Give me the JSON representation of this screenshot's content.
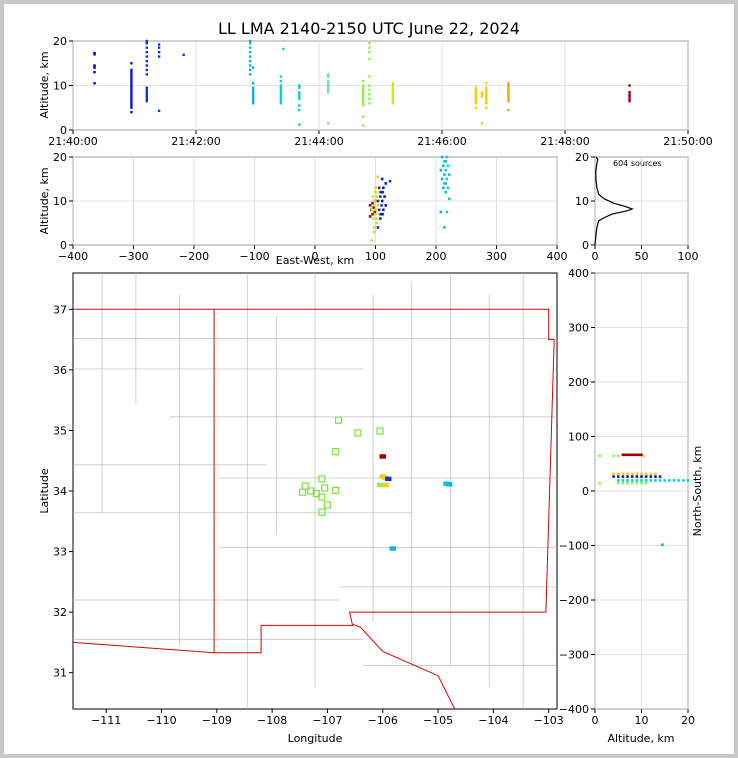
{
  "chart_data": {
    "title": "LL LMA 2140-2150 UTC June 22, 2024",
    "colors": [
      "#0000aa",
      "#0a18cc",
      "#1030e8",
      "#00b4e6",
      "#00d2d2",
      "#60e8a0",
      "#90f050",
      "#c8f000",
      "#ffc800",
      "#ffa000",
      "#a00000"
    ],
    "time_altitude": {
      "type": "scatter",
      "ylabel": "Altitude, km",
      "xlim_minutes": [
        40,
        50
      ],
      "ylim": [
        0,
        20
      ],
      "x_ticks": [
        "21:40:00",
        "21:42:00",
        "21:44:00",
        "21:46:00",
        "21:48:00",
        "21:50:00"
      ],
      "y_ticks": [
        "0",
        "10",
        "20"
      ],
      "columns": [
        {
          "t": 40.35,
          "z": [
            10.5,
            13,
            14,
            14.5,
            17,
            17.3
          ],
          "c": 0
        },
        {
          "t": 40.95,
          "z": [
            4,
            5,
            5.5,
            6,
            6.5,
            7,
            7.5,
            8,
            8.5,
            9,
            9.5,
            10,
            10.5,
            11,
            11.5,
            12,
            12.5,
            13,
            13.5,
            15
          ],
          "c": 1
        },
        {
          "t": 41.2,
          "z": [
            6.5,
            7,
            7.5,
            8,
            8.5,
            9,
            9.5,
            12.5,
            13.5,
            14.5,
            15.5,
            16.5,
            17.5,
            18.5,
            19.5,
            20
          ],
          "c": 2
        },
        {
          "t": 41.4,
          "z": [
            4.3,
            16.5,
            17.5,
            18.5,
            19.2
          ],
          "c": 2
        },
        {
          "t": 41.8,
          "z": [
            16.9
          ],
          "c": 2
        },
        {
          "t": 42.88,
          "z": [
            12.5,
            13.5,
            14.5,
            15.5,
            16.5,
            17.5,
            18.5,
            19.5,
            20
          ],
          "c": 3
        },
        {
          "t": 42.93,
          "z": [
            6,
            6.5,
            7,
            7.5,
            8,
            8.5,
            9,
            9.5,
            10.5,
            14
          ],
          "c": 3
        },
        {
          "t": 43.38,
          "z": [
            6,
            6.5,
            7,
            7.5,
            8,
            8.5,
            9,
            9.5,
            10,
            11,
            12
          ],
          "c": 4
        },
        {
          "t": 43.42,
          "z": [
            18.2
          ],
          "c": 4
        },
        {
          "t": 43.68,
          "z": [
            1.2,
            4.5,
            5.5,
            7,
            7.5,
            8,
            8.5,
            9.5,
            10
          ],
          "c": 4
        },
        {
          "t": 44.15,
          "z": [
            1.5,
            8.5,
            9,
            9.5,
            10,
            10.5,
            11,
            12,
            12.5
          ],
          "c": 5
        },
        {
          "t": 44.72,
          "z": [
            1,
            3,
            5.5,
            6,
            6.5,
            7,
            7.5,
            8,
            8.5,
            9,
            9.5,
            10,
            11
          ],
          "c": 6
        },
        {
          "t": 44.82,
          "z": [
            6,
            7,
            8,
            9,
            10,
            12,
            16,
            17.5,
            18.5,
            19.5
          ],
          "c": 6
        },
        {
          "t": 45.2,
          "z": [
            6,
            6.5,
            7,
            7.5,
            8,
            8.5,
            9,
            9.5,
            10,
            10.5
          ],
          "c": 7
        },
        {
          "t": 46.55,
          "z": [
            5,
            6,
            6.5,
            7,
            7.5,
            8,
            8.5,
            9,
            9.5
          ],
          "c": 8
        },
        {
          "t": 46.65,
          "z": [
            1.5,
            7.5,
            8,
            8.5
          ],
          "c": 8
        },
        {
          "t": 46.72,
          "z": [
            5,
            6,
            6.5,
            7,
            7.5,
            8,
            8.5,
            9,
            9.5,
            10.5
          ],
          "c": 8
        },
        {
          "t": 47.08,
          "z": [
            4.5,
            6.5,
            7,
            7.5,
            8,
            8.5,
            9,
            9.5,
            10,
            10.5
          ],
          "c": 9
        },
        {
          "t": 49.05,
          "z": [
            6.5,
            7,
            7.5,
            8,
            8.5,
            10
          ],
          "c": 10
        }
      ]
    },
    "ew_altitude": {
      "type": "scatter",
      "xlabel": "East-West, km",
      "ylabel": "Altitude, km",
      "xlim": [
        -400,
        400
      ],
      "ylim": [
        0,
        20
      ],
      "x_ticks": [
        "−400",
        "−300",
        "−200",
        "−100",
        "0",
        "100",
        "200",
        "300",
        "400"
      ],
      "y_ticks": [
        "0",
        "10",
        "20"
      ],
      "clusters": [
        {
          "x": 95,
          "z": [
            6.5,
            7,
            7.5,
            8,
            8.5,
            9,
            9.5,
            10
          ],
          "c": 10
        },
        {
          "x": 98,
          "z": [
            1,
            3,
            5,
            6,
            7,
            8,
            9,
            10,
            11,
            12
          ],
          "c": 6
        },
        {
          "x": 102,
          "z": [
            4,
            6,
            7,
            8,
            9,
            10,
            11,
            12,
            13,
            15.5
          ],
          "c": 8
        },
        {
          "x": 108,
          "z": [
            4,
            6,
            7,
            8,
            9,
            10,
            11,
            12,
            13
          ],
          "c": 2
        },
        {
          "x": 113,
          "z": [
            7,
            8,
            9,
            10,
            11,
            12,
            13,
            14,
            15
          ],
          "c": 1
        },
        {
          "x": 128,
          "z": [
            14.5
          ],
          "c": 2
        },
        {
          "x": 212,
          "z": [
            7.5,
            13,
            14,
            15,
            16,
            17,
            18,
            19,
            20
          ],
          "c": 3
        },
        {
          "x": 218,
          "z": [
            4,
            7.5,
            10.5,
            12,
            13,
            14,
            15,
            16,
            17,
            18,
            19,
            20
          ],
          "c": 4
        }
      ]
    },
    "altitude_histogram": {
      "type": "line",
      "label": "604 sources",
      "xlim": [
        0,
        100
      ],
      "ylim": [
        0,
        20
      ],
      "x_ticks": [
        "0",
        "50",
        "100"
      ],
      "y_ticks": [
        "0",
        "10",
        "20"
      ],
      "points": [
        [
          0,
          0
        ],
        [
          1,
          2
        ],
        [
          2,
          4
        ],
        [
          4,
          5.5
        ],
        [
          8,
          6
        ],
        [
          18,
          7
        ],
        [
          35,
          7.8
        ],
        [
          40,
          8.2
        ],
        [
          32,
          8.8
        ],
        [
          20,
          9.5
        ],
        [
          10,
          10.5
        ],
        [
          4,
          11.5
        ],
        [
          2,
          13
        ],
        [
          1,
          15
        ],
        [
          1,
          17
        ],
        [
          2,
          18.5
        ],
        [
          3,
          19.5
        ],
        [
          1,
          20
        ]
      ]
    },
    "plan_view": {
      "type": "scatter",
      "xlabel": "Longitude",
      "ylabel": "Latitude",
      "xlim": [
        -111.6,
        -102.85
      ],
      "ylim": [
        30.4,
        37.6
      ],
      "x_ticks": [
        "−111",
        "−110",
        "−109",
        "−108",
        "−107",
        "−106",
        "−105",
        "−104",
        "−103"
      ],
      "y_ticks": [
        "31",
        "32",
        "33",
        "34",
        "35",
        "36",
        "37"
      ],
      "stations_lonlat": [
        [
          -106.8,
          35.17
        ],
        [
          -106.45,
          34.96
        ],
        [
          -106.05,
          34.99
        ],
        [
          -106.85,
          34.65
        ],
        [
          -107.4,
          34.08
        ],
        [
          -107.1,
          34.2
        ],
        [
          -107.45,
          33.98
        ],
        [
          -107.3,
          34.0
        ],
        [
          -107.2,
          33.96
        ],
        [
          -107.1,
          33.9
        ],
        [
          -107.05,
          34.05
        ],
        [
          -106.85,
          34.01
        ],
        [
          -107.0,
          33.77
        ],
        [
          -107.1,
          33.65
        ]
      ],
      "sources_lonlat": [
        {
          "lon": -106.0,
          "lat": 34.57,
          "c": 10
        },
        {
          "lon": -106.0,
          "lat": 34.24,
          "c": 8
        },
        {
          "lon": -105.95,
          "lat": 34.22,
          "c": 8
        },
        {
          "lon": -105.9,
          "lat": 34.2,
          "c": 2
        },
        {
          "lon": -105.95,
          "lat": 34.1,
          "c": 8
        },
        {
          "lon": -106.05,
          "lat": 34.1,
          "c": 6
        },
        {
          "lon": -104.85,
          "lat": 34.12,
          "c": 4
        },
        {
          "lon": -104.8,
          "lat": 34.11,
          "c": 3
        },
        {
          "lon": -105.82,
          "lat": 33.05,
          "c": 3
        }
      ]
    },
    "ns_altitude": {
      "type": "scatter",
      "xlabel": "Altitude, km",
      "ylabel": "North-South, km",
      "xlim": [
        0,
        20
      ],
      "ylim": [
        -400,
        400
      ],
      "x_ticks": [
        "0",
        "10",
        "20"
      ],
      "y_ticks": [
        "−400",
        "−300",
        "−200",
        "−100",
        "0",
        "100",
        "200",
        "300",
        "400"
      ],
      "clusters": [
        {
          "y": 62,
          "z": [
            6,
            6.5,
            7,
            7.5,
            8,
            8.5,
            9,
            9.5,
            10
          ],
          "c": 10
        },
        {
          "y": 60,
          "z": [
            1,
            4,
            5,
            10.5
          ],
          "c": 6
        },
        {
          "y": 27,
          "z": [
            4,
            5,
            6,
            7,
            8,
            9,
            10,
            11,
            12,
            13
          ],
          "c": 8
        },
        {
          "y": 22,
          "z": [
            4,
            5,
            6,
            7,
            8,
            9,
            10,
            11,
            12,
            13,
            14
          ],
          "c": 1
        },
        {
          "y": 15,
          "z": [
            5,
            6,
            7,
            8,
            9,
            10,
            11,
            12,
            13,
            14,
            15,
            16,
            17,
            18,
            19,
            20
          ],
          "c": 4
        },
        {
          "y": 10,
          "z": [
            1,
            5,
            6,
            7,
            8,
            9,
            10,
            11
          ],
          "c": 6
        },
        {
          "y": -103,
          "z": [
            14.5
          ],
          "c": 3
        }
      ]
    }
  }
}
